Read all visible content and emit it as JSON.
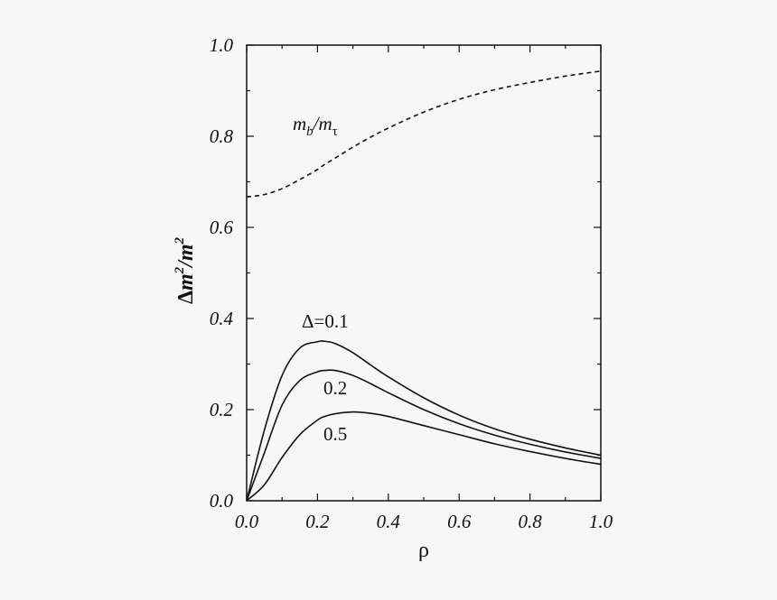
{
  "chart_data": {
    "type": "line",
    "title": "",
    "xlabel": "ρ",
    "ylabel": "Δm²/m²",
    "xlim": [
      0.0,
      1.0
    ],
    "ylim": [
      0.0,
      1.0
    ],
    "grid": false,
    "x_ticks": [
      "0.0",
      "0.2",
      "0.4",
      "0.6",
      "0.8",
      "1.0"
    ],
    "y_ticks": [
      "0.0",
      "0.2",
      "0.4",
      "0.6",
      "0.8",
      "1.0"
    ],
    "x": [
      0.0,
      0.05,
      0.1,
      0.15,
      0.2,
      0.22,
      0.25,
      0.3,
      0.35,
      0.4,
      0.5,
      0.6,
      0.7,
      0.8,
      0.9,
      1.0
    ],
    "series": [
      {
        "name": "m_b/m_τ",
        "style": "dashed",
        "values": [
          0.667,
          0.672,
          0.685,
          0.705,
          0.727,
          0.738,
          0.752,
          0.776,
          0.798,
          0.818,
          0.853,
          0.881,
          0.902,
          0.918,
          0.932,
          0.943
        ]
      },
      {
        "name": "Δ=0.1",
        "style": "solid",
        "values": [
          0.0,
          0.155,
          0.275,
          0.335,
          0.349,
          0.35,
          0.345,
          0.325,
          0.298,
          0.272,
          0.226,
          0.188,
          0.158,
          0.135,
          0.116,
          0.1
        ]
      },
      {
        "name": "0.2",
        "style": "solid",
        "values": [
          0.0,
          0.105,
          0.21,
          0.264,
          0.283,
          0.286,
          0.286,
          0.275,
          0.257,
          0.237,
          0.2,
          0.169,
          0.144,
          0.124,
          0.107,
          0.093
        ]
      },
      {
        "name": "0.5",
        "style": "solid",
        "values": [
          0.0,
          0.035,
          0.095,
          0.145,
          0.177,
          0.185,
          0.191,
          0.195,
          0.192,
          0.185,
          0.165,
          0.145,
          0.125,
          0.108,
          0.093,
          0.08
        ]
      }
    ],
    "annotations": [
      {
        "text_main": "m",
        "text_sub": "b",
        "text_sep": "/m",
        "text_sub2": "τ",
        "series": "m_b/m_τ"
      },
      {
        "text": "Δ=0.1",
        "series": "Δ=0.1"
      },
      {
        "text": "0.2",
        "series": "0.2"
      },
      {
        "text": "0.5",
        "series": "0.5"
      }
    ]
  },
  "labels": {
    "x_axis": "ρ",
    "y_delta": "Δ",
    "y_m1": "m",
    "y_sup1": "2",
    "y_slash": "/",
    "y_m2": "m",
    "y_sup2": "2",
    "ann_mb_m": "m",
    "ann_mb_b": "b",
    "ann_mb_slash": "/m",
    "ann_mb_tau": "τ",
    "ann_d01": "Δ=0.1",
    "ann_d02": "0.2",
    "ann_d05": "0.5"
  }
}
